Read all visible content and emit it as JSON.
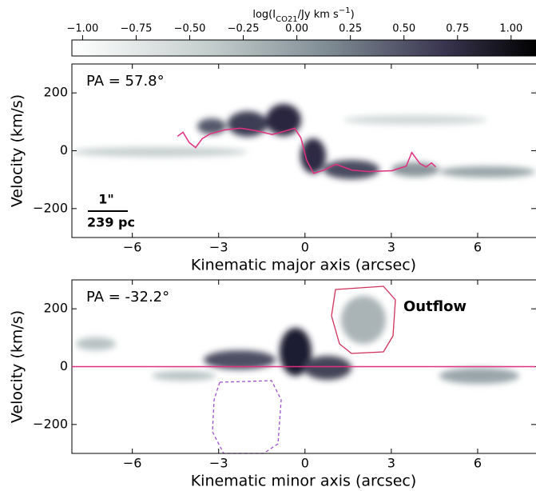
{
  "colorbar": {
    "label_parts": [
      "log(I",
      "CO21",
      "/Jy km s",
      "−1",
      ")"
    ],
    "clim": [
      -1.05,
      1.12
    ],
    "ticks": [
      {
        "value": -1.0,
        "label": "−1.00"
      },
      {
        "value": -0.75,
        "label": "−0.75"
      },
      {
        "value": -0.5,
        "label": "−0.50"
      },
      {
        "value": -0.25,
        "label": "−0.25"
      },
      {
        "value": 0.0,
        "label": "0.00"
      },
      {
        "value": 0.25,
        "label": "0.25"
      },
      {
        "value": 0.5,
        "label": "0.50"
      },
      {
        "value": 0.75,
        "label": "0.75"
      },
      {
        "value": 1.0,
        "label": "1.00"
      }
    ]
  },
  "chart_data": [
    {
      "type": "line",
      "annotation": "PA = 57.8°",
      "scalebar": [
        "1\"",
        "239 pc"
      ],
      "xlabel": "Kinematic major axis (arcsec)",
      "ylabel": "Velocity (km/s)",
      "xlim": [
        -8.1,
        8.0
      ],
      "ylim": [
        -300,
        300
      ],
      "xticks": [
        {
          "value": -6,
          "label": "−6"
        },
        {
          "value": -3,
          "label": "−3"
        },
        0,
        3,
        6
      ],
      "yticks": [
        {
          "value": -200,
          "label": "−200"
        },
        0,
        200
      ],
      "series": [
        {
          "color": "#e0307f",
          "x": [
            -4.43,
            -4.24,
            -4.02,
            -3.8,
            -3.57,
            -3.3,
            -2.8,
            -2.24,
            -1.69,
            -1.14,
            -0.72,
            -0.36,
            -0.14,
            0.06,
            0.3,
            0.66,
            1.08,
            1.63,
            2.19,
            3.02,
            3.52,
            3.71,
            3.99,
            4.21,
            4.4,
            4.54
          ],
          "values": [
            50,
            64,
            28,
            11,
            42,
            58,
            72,
            78,
            69,
            56,
            67,
            78,
            44,
            -33,
            -78,
            -67,
            -47,
            -67,
            -72,
            -69,
            -53,
            -6,
            -44,
            -56,
            -42,
            -56
          ]
        }
      ]
    },
    {
      "type": "line",
      "annotation": "PA = -32.2°",
      "label": "Outflow",
      "xlabel": "Kinematic minor axis (arcsec)",
      "ylabel": "Velocity (km/s)",
      "xlim": [
        -8.1,
        8.0
      ],
      "ylim": [
        -300,
        300
      ],
      "xticks": [
        {
          "value": -6,
          "label": "−6"
        },
        {
          "value": -3,
          "label": "−3"
        },
        0,
        3,
        6
      ],
      "yticks": [
        {
          "value": -200,
          "label": "−200"
        },
        0,
        200
      ],
      "series": [
        {
          "color": "#e0307f",
          "x": [
            -8.1,
            8.0
          ],
          "values": [
            0,
            0
          ]
        }
      ]
    }
  ]
}
